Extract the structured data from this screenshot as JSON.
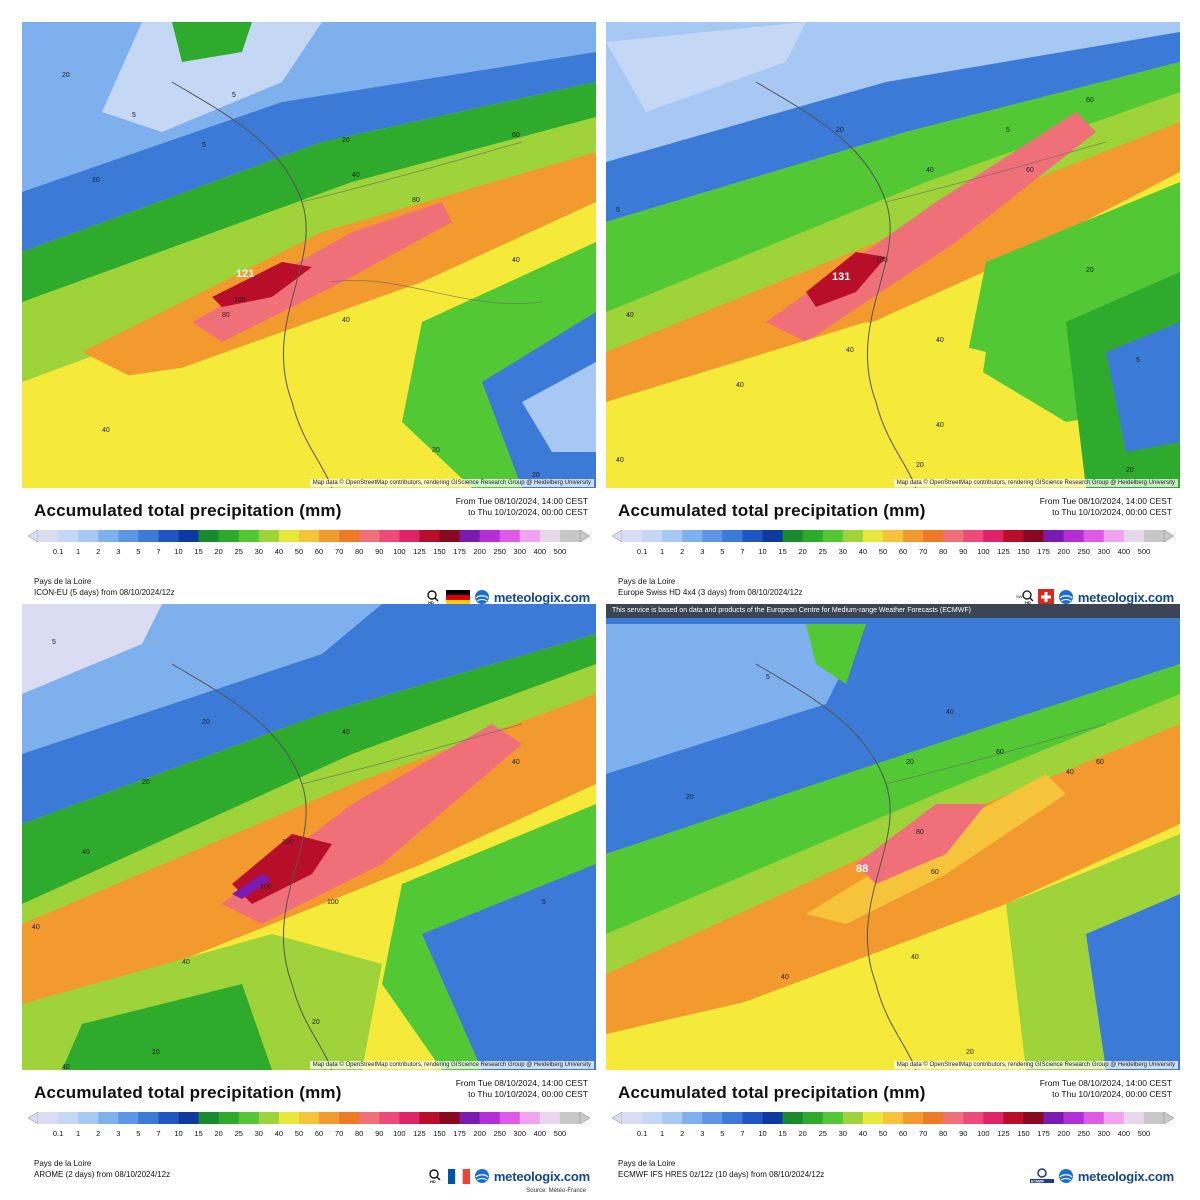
{
  "common": {
    "title": "Accumulated total precipitation (mm)",
    "from_line": "From Tue 08/10/2024, 14:00 CEST",
    "to_line": "to Thu 10/10/2024, 00:00 CEST",
    "region": "Pays de la Loire",
    "attribution": "Map data © OpenStreetMap contributors, rendering GIScience Research Group @ Heidelberg University",
    "brand": "meteologix.com"
  },
  "scale": {
    "labels": [
      "0.1",
      "1",
      "2",
      "3",
      "5",
      "7",
      "10",
      "15",
      "20",
      "25",
      "30",
      "40",
      "50",
      "60",
      "70",
      "80",
      "90",
      "100",
      "125",
      "150",
      "175",
      "200",
      "250",
      "300",
      "400",
      "500"
    ],
    "colors": [
      "#d9dcf2",
      "#c4d8f6",
      "#a6c8f2",
      "#7fb0ee",
      "#5d96e6",
      "#3b7ad6",
      "#2056c4",
      "#0c3aa0",
      "#1a8a2e",
      "#2eaa2c",
      "#52c834",
      "#9ed43a",
      "#e8e83a",
      "#f6c43a",
      "#f39a2e",
      "#ee7a26",
      "#f0707a",
      "#ec4a7a",
      "#e02266",
      "#b80e2a",
      "#8a0820",
      "#7a1ab0",
      "#b42ed8",
      "#e05ae8",
      "#f1a3f0",
      "#e8d6ea",
      "#c8c8c8"
    ]
  },
  "panels": [
    {
      "model": "ICON-EU (5 days) from 08/10/2024/12z",
      "max_label": "121",
      "flag": "de-flag-icon",
      "source": "",
      "ecmwf_note": "",
      "contours": [
        "5",
        "5",
        "5",
        "20",
        "20",
        "40",
        "40",
        "40",
        "60",
        "80",
        "80",
        "100",
        "20",
        "40",
        "20",
        "20"
      ]
    },
    {
      "model": "Europe Swiss HD 4x4 (3 days) from 08/10/2024/12z",
      "max_label": "131",
      "flag": "ch-flag-icon",
      "source": "",
      "ecmwf_note": "",
      "contours": [
        "5",
        "5",
        "20",
        "40",
        "60",
        "60",
        "100",
        "40",
        "40",
        "40",
        "20",
        "40",
        "40",
        "20",
        "40",
        "5",
        "20"
      ]
    },
    {
      "model": "AROME (2 days) from 08/10/2024/12z",
      "max_label": "",
      "flag": "fr-flag-icon",
      "source": "Source: Météo-France",
      "ecmwf_note": "",
      "contours": [
        "5",
        "20",
        "40",
        "40",
        "100",
        "100",
        "100",
        "40",
        "40",
        "20",
        "20",
        "40",
        "5",
        "20",
        "40"
      ]
    },
    {
      "model": "ECMWF IFS HRES 0z/12z (10 days) from 08/10/2024/12z",
      "max_label": "88",
      "flag": "ecmwf-logo-icon",
      "source": "",
      "ecmwf_note": "This service is based on data and products of the European Centre for Medium-range Weather Forecasts (ECMWF)",
      "contours": [
        "5",
        "20",
        "20",
        "40",
        "60",
        "60",
        "80",
        "60",
        "40",
        "40",
        "40",
        "20"
      ]
    }
  ]
}
